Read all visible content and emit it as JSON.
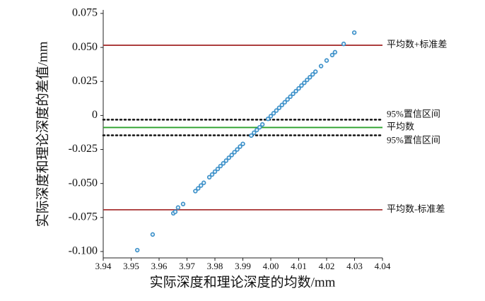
{
  "chart_data": {
    "type": "scatter",
    "xlabel": "实际深度和理论深度的均数/mm",
    "ylabel": "实际深度和理论深度的差值/mm",
    "xlim": [
      3.94,
      4.04
    ],
    "ylim": [
      -0.1047,
      0.0776
    ],
    "xticks": [
      3.94,
      3.95,
      3.96,
      3.97,
      3.98,
      3.99,
      {
        "value": 4.0,
        "label": "4.00"
      },
      4.01,
      4.02,
      4.03,
      4.04
    ],
    "yticks": [
      {
        "value": -0.1,
        "label": "-0.100"
      },
      -0.075,
      {
        "value": -0.05,
        "label": "-0.050"
      },
      -0.025,
      0,
      0.025,
      {
        "value": 0.05,
        "label": "0.050"
      },
      0.075
    ],
    "color": "#3a8fc8",
    "x": [
      3.9522,
      3.9577,
      3.9651,
      3.9658,
      3.9668,
      3.9686,
      3.973,
      3.974,
      3.975,
      3.976,
      3.978,
      3.979,
      3.98,
      3.981,
      3.982,
      3.983,
      3.984,
      3.985,
      3.986,
      3.987,
      3.988,
      3.989,
      3.99,
      3.993,
      3.994,
      3.995,
      3.996,
      3.997,
      3.999,
      4.0,
      4.001,
      4.002,
      4.003,
      4.004,
      4.005,
      4.006,
      4.007,
      4.008,
      4.009,
      4.01,
      4.011,
      4.012,
      4.013,
      4.014,
      4.015,
      4.016,
      4.018,
      4.02,
      4.022,
      4.023,
      4.0261,
      4.0299
    ],
    "values": [
      -0.099,
      -0.0875,
      -0.0719,
      -0.0708,
      -0.0677,
      -0.0651,
      -0.0556,
      -0.0536,
      -0.0515,
      -0.0495,
      -0.0454,
      -0.0434,
      -0.0413,
      -0.0393,
      -0.0372,
      -0.0352,
      -0.0332,
      -0.0311,
      -0.0291,
      -0.027,
      -0.025,
      -0.0229,
      -0.0209,
      -0.0148,
      -0.0127,
      -0.0107,
      -0.0087,
      -0.0066,
      -0.0025,
      -0.0005,
      0.0016,
      0.0036,
      0.0056,
      0.0077,
      0.0097,
      0.0118,
      0.0138,
      0.0159,
      0.0179,
      0.0199,
      0.022,
      0.024,
      0.0261,
      0.0281,
      0.0302,
      0.0322,
      0.0363,
      0.0404,
      0.0444,
      0.0465,
      0.0526,
      0.0609
    ],
    "lines": [
      {
        "value": 0.0516,
        "label": "平均数+标准差",
        "color": "#a83232",
        "style": "solid"
      },
      {
        "value": -0.0031,
        "label": "95%置信区间",
        "color": "#111111",
        "style": "dotted"
      },
      {
        "value": -0.00885,
        "label": "平均数",
        "color": "#2ca02c",
        "style": "solid"
      },
      {
        "value": -0.0146,
        "label": "95%置信区间",
        "color": "#111111",
        "style": "dotted"
      },
      {
        "value": -0.0693,
        "label": "平均数-标准差",
        "color": "#a83232",
        "style": "solid"
      }
    ]
  }
}
